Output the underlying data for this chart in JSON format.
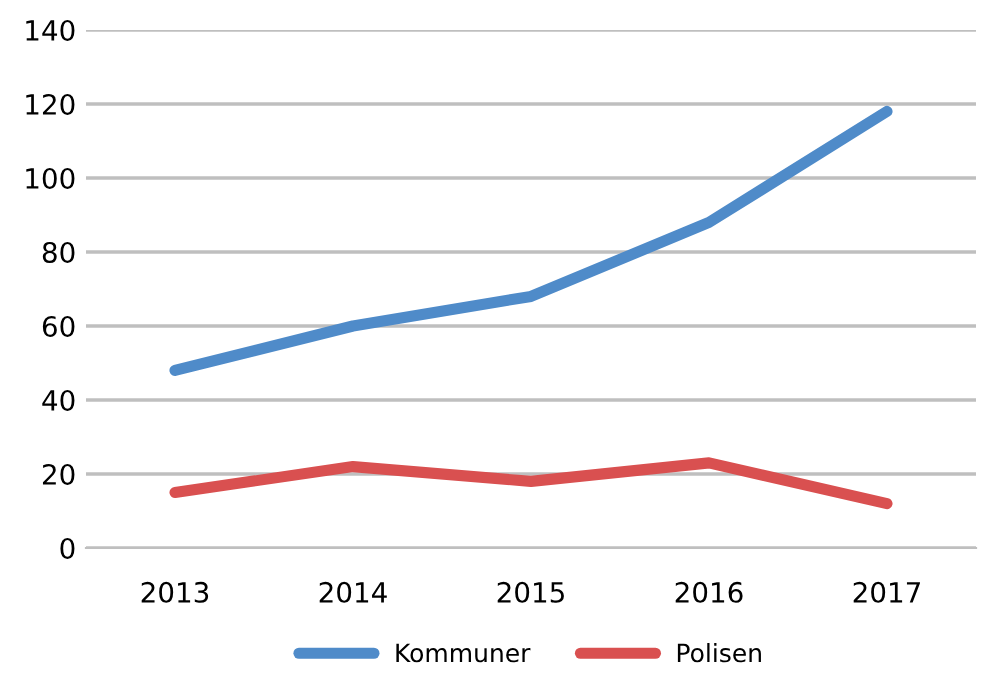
{
  "chart_data": {
    "type": "line",
    "categories": [
      "2013",
      "2014",
      "2015",
      "2016",
      "2017"
    ],
    "series": [
      {
        "name": "Kommuner",
        "color": "#4f8bc9",
        "values": [
          48,
          60,
          68,
          88,
          118
        ]
      },
      {
        "name": "Polisen",
        "color": "#d95050",
        "values": [
          15,
          22,
          18,
          23,
          12
        ]
      }
    ],
    "ylim": [
      0,
      140
    ],
    "yticks": [
      0,
      20,
      40,
      60,
      80,
      100,
      120,
      140
    ],
    "grid": "y",
    "legend": "bottom",
    "marker": "none",
    "line_style": "solid"
  }
}
